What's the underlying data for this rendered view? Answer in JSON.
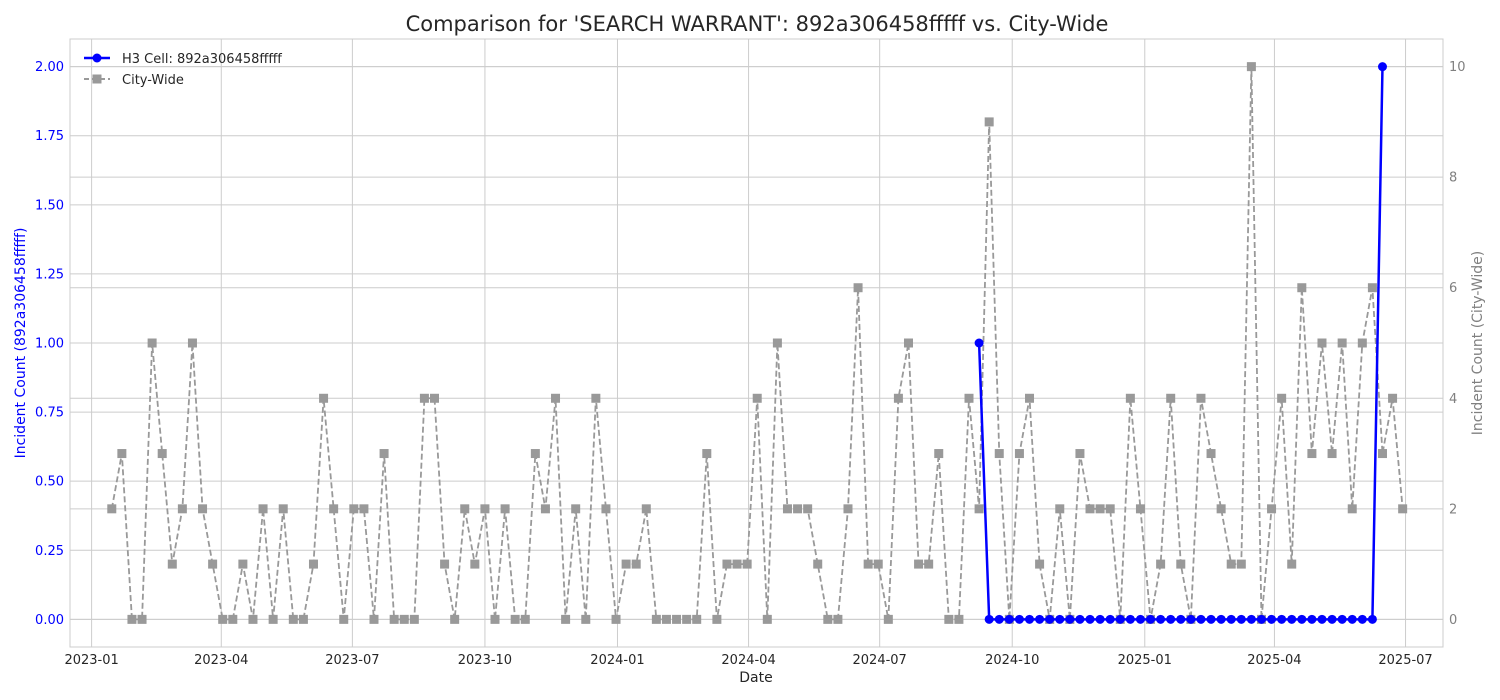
{
  "chart_data": {
    "type": "line",
    "title": "Comparison for 'SEARCH WARRANT': 892a306458fffff vs. City-Wide",
    "xlabel": "Date",
    "ylabel_left": "Incident Count (892a306458fffff)",
    "ylabel_right": "Incident Count (City-Wide)",
    "x_ticks": [
      "2023-01",
      "2023-04",
      "2023-07",
      "2023-10",
      "2024-01",
      "2024-04",
      "2024-07",
      "2024-10",
      "2025-01",
      "2025-04",
      "2025-07"
    ],
    "y_left_ticks": [
      "0.00",
      "0.25",
      "0.50",
      "0.75",
      "1.00",
      "1.25",
      "1.50",
      "1.75",
      "2.00"
    ],
    "y_right_ticks": [
      "0",
      "2",
      "4",
      "6",
      "8",
      "10"
    ],
    "ylim_left": [
      -0.1,
      2.1
    ],
    "ylim_right": [
      -0.5,
      10.5
    ],
    "xlim": [
      "2022-12-17",
      "2025-07-27"
    ],
    "grid": true,
    "legend_position": "top-left",
    "colors": {
      "cell": "#0000ff",
      "city": "#999999",
      "left_axis_text": "#0000ff",
      "right_axis_text": "#808080"
    },
    "series": [
      {
        "name": "H3 Cell: 892a306458fffff",
        "axis": "left",
        "style": "solid-circle",
        "x": [
          "2024-09-08",
          "2024-09-15",
          "2024-09-22",
          "2024-09-29",
          "2024-10-06",
          "2024-10-13",
          "2024-10-20",
          "2024-10-27",
          "2024-11-03",
          "2024-11-10",
          "2024-11-17",
          "2024-11-24",
          "2024-12-01",
          "2024-12-08",
          "2024-12-15",
          "2024-12-22",
          "2024-12-29",
          "2025-01-05",
          "2025-01-12",
          "2025-01-19",
          "2025-01-26",
          "2025-02-02",
          "2025-02-09",
          "2025-02-16",
          "2025-02-23",
          "2025-03-02",
          "2025-03-09",
          "2025-03-16",
          "2025-03-23",
          "2025-03-30",
          "2025-04-06",
          "2025-04-13",
          "2025-04-20",
          "2025-04-27",
          "2025-05-04",
          "2025-05-11",
          "2025-05-18",
          "2025-05-25",
          "2025-06-01",
          "2025-06-08",
          "2025-06-15"
        ],
        "values": [
          1,
          0,
          0,
          0,
          0,
          0,
          0,
          0,
          0,
          0,
          0,
          0,
          0,
          0,
          0,
          0,
          0,
          0,
          0,
          0,
          0,
          0,
          0,
          0,
          0,
          0,
          0,
          0,
          0,
          0,
          0,
          0,
          0,
          0,
          0,
          0,
          0,
          0,
          0,
          0,
          2
        ]
      },
      {
        "name": "City-Wide",
        "axis": "right",
        "style": "dashed-square",
        "x": [
          "2023-01-15",
          "2023-01-22",
          "2023-01-29",
          "2023-02-05",
          "2023-02-12",
          "2023-02-19",
          "2023-02-26",
          "2023-03-05",
          "2023-03-12",
          "2023-03-19",
          "2023-03-26",
          "2023-04-02",
          "2023-04-09",
          "2023-04-16",
          "2023-04-23",
          "2023-04-30",
          "2023-05-07",
          "2023-05-14",
          "2023-05-21",
          "2023-05-28",
          "2023-06-04",
          "2023-06-11",
          "2023-06-18",
          "2023-06-25",
          "2023-07-02",
          "2023-07-09",
          "2023-07-16",
          "2023-07-23",
          "2023-07-30",
          "2023-08-06",
          "2023-08-13",
          "2023-08-20",
          "2023-08-27",
          "2023-09-03",
          "2023-09-10",
          "2023-09-17",
          "2023-09-24",
          "2023-10-01",
          "2023-10-08",
          "2023-10-15",
          "2023-10-22",
          "2023-10-29",
          "2023-11-05",
          "2023-11-12",
          "2023-11-19",
          "2023-11-26",
          "2023-12-03",
          "2023-12-10",
          "2023-12-17",
          "2023-12-24",
          "2023-12-31",
          "2024-01-07",
          "2024-01-14",
          "2024-01-21",
          "2024-01-28",
          "2024-02-04",
          "2024-02-11",
          "2024-02-18",
          "2024-02-25",
          "2024-03-03",
          "2024-03-10",
          "2024-03-17",
          "2024-03-24",
          "2024-03-31",
          "2024-04-07",
          "2024-04-14",
          "2024-04-21",
          "2024-04-28",
          "2024-05-05",
          "2024-05-12",
          "2024-05-19",
          "2024-05-26",
          "2024-06-02",
          "2024-06-09",
          "2024-06-16",
          "2024-06-23",
          "2024-06-30",
          "2024-07-07",
          "2024-07-14",
          "2024-07-21",
          "2024-07-28",
          "2024-08-04",
          "2024-08-11",
          "2024-08-18",
          "2024-08-25",
          "2024-09-01",
          "2024-09-08",
          "2024-09-15",
          "2024-09-22",
          "2024-09-29",
          "2024-10-06",
          "2024-10-13",
          "2024-10-20",
          "2024-10-27",
          "2024-11-03",
          "2024-11-10",
          "2024-11-17",
          "2024-11-24",
          "2024-12-01",
          "2024-12-08",
          "2024-12-15",
          "2024-12-22",
          "2024-12-29",
          "2025-01-05",
          "2025-01-12",
          "2025-01-19",
          "2025-01-26",
          "2025-02-02",
          "2025-02-09",
          "2025-02-16",
          "2025-02-23",
          "2025-03-02",
          "2025-03-09",
          "2025-03-16",
          "2025-03-23",
          "2025-03-30",
          "2025-04-06",
          "2025-04-13",
          "2025-04-20",
          "2025-04-27",
          "2025-05-04",
          "2025-05-11",
          "2025-05-18",
          "2025-05-25",
          "2025-06-01",
          "2025-06-08",
          "2025-06-15",
          "2025-06-22",
          "2025-06-29"
        ],
        "values": [
          2,
          3,
          0,
          0,
          5,
          3,
          1,
          2,
          5,
          2,
          1,
          0,
          0,
          1,
          0,
          2,
          0,
          2,
          0,
          0,
          1,
          4,
          2,
          0,
          2,
          2,
          0,
          3,
          0,
          0,
          0,
          4,
          4,
          1,
          0,
          2,
          1,
          2,
          0,
          2,
          0,
          0,
          3,
          2,
          4,
          0,
          2,
          0,
          4,
          2,
          0,
          1,
          1,
          2,
          0,
          0,
          0,
          0,
          0,
          3,
          0,
          1,
          1,
          1,
          4,
          0,
          5,
          2,
          2,
          2,
          1,
          0,
          0,
          2,
          6,
          1,
          1,
          0,
          4,
          5,
          1,
          1,
          3,
          0,
          0,
          4,
          2,
          9,
          3,
          0,
          3,
          4,
          1,
          0,
          2,
          0,
          3,
          2,
          2,
          2,
          0,
          4,
          2,
          0,
          1,
          4,
          1,
          0,
          4,
          3,
          2,
          1,
          1,
          10,
          0,
          2,
          4,
          1,
          6,
          3,
          5,
          3,
          5,
          2,
          5,
          6,
          3,
          4,
          2
        ]
      }
    ]
  }
}
